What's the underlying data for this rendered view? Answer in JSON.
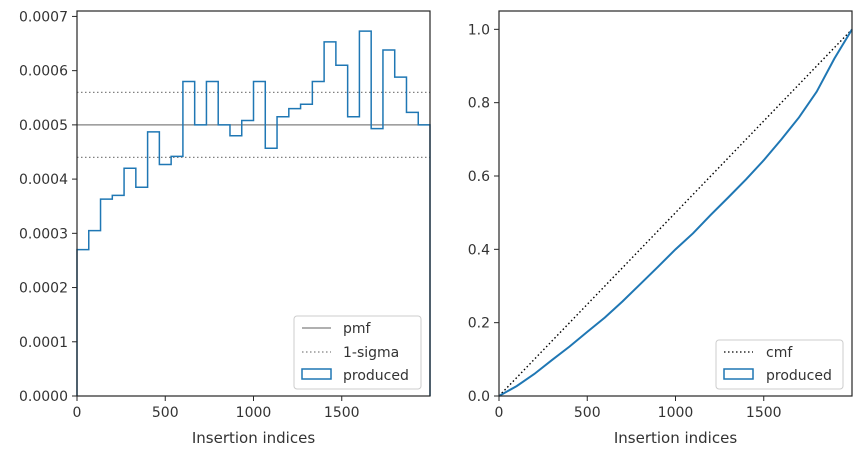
{
  "chart_data": [
    {
      "type": "step",
      "xlabel": "Insertion indices",
      "ylabel": "",
      "xlim": [
        0,
        2000
      ],
      "ylim": [
        0,
        0.00071
      ],
      "xticks": [
        "0",
        "500",
        "1000",
        "1500"
      ],
      "yticks": [
        "0.0000",
        "0.0001",
        "0.0002",
        "0.0003",
        "0.0004",
        "0.0005",
        "0.0006",
        "0.0007"
      ],
      "xtick_values": [
        0,
        500,
        1000,
        1500
      ],
      "ytick_values": [
        0,
        0.0001,
        0.0002,
        0.0003,
        0.0004,
        0.0005,
        0.0006,
        0.0007
      ],
      "bin_width": 66.67,
      "series": [
        {
          "name": "produced",
          "color": "#1f77b4",
          "values": [
            0.00027,
            0.000305,
            0.000363,
            0.00037,
            0.00042,
            0.000385,
            0.000487,
            0.000427,
            0.000442,
            0.00058,
            0.0005,
            0.00058,
            0.0005,
            0.00048,
            0.000508,
            0.00058,
            0.000457,
            0.000515,
            0.00053,
            0.000538,
            0.00058,
            0.000653,
            0.00061,
            0.000515,
            0.000673,
            0.000493,
            0.000638,
            0.000588,
            0.000523,
            0.0005
          ]
        }
      ],
      "reference_lines": [
        {
          "name": "pmf",
          "y": 0.0005,
          "style": "solid",
          "color": "#808080"
        },
        {
          "name": "1-sigma",
          "y": 0.00056,
          "style": "dotted",
          "color": "#808080"
        },
        {
          "name": "1-sigma",
          "y": 0.00044,
          "style": "dotted",
          "color": "#808080"
        }
      ],
      "legend": {
        "position": "bottom-right",
        "entries": [
          "pmf",
          "1-sigma",
          "produced"
        ]
      }
    },
    {
      "type": "line",
      "xlabel": "Insertion indices",
      "ylabel": "",
      "xlim": [
        0,
        2000
      ],
      "ylim": [
        0,
        1.05
      ],
      "xticks": [
        "0",
        "500",
        "1000",
        "1500"
      ],
      "yticks": [
        "0.0",
        "0.2",
        "0.4",
        "0.6",
        "0.8",
        "1.0"
      ],
      "xtick_values": [
        0,
        500,
        1000,
        1500
      ],
      "ytick_values": [
        0,
        0.2,
        0.4,
        0.6,
        0.8,
        1.0
      ],
      "series": [
        {
          "name": "cmf",
          "style": "dotted",
          "color": "#000000",
          "x": [
            0,
            2000
          ],
          "y": [
            0,
            1.0
          ]
        },
        {
          "name": "produced",
          "color": "#1f77b4",
          "x": [
            0,
            100,
            200,
            300,
            400,
            500,
            600,
            700,
            800,
            900,
            1000,
            1100,
            1200,
            1300,
            1400,
            1500,
            1600,
            1700,
            1800,
            1900,
            2000
          ],
          "y": [
            0,
            0.027,
            0.06,
            0.098,
            0.135,
            0.175,
            0.214,
            0.258,
            0.305,
            0.352,
            0.4,
            0.444,
            0.494,
            0.542,
            0.591,
            0.643,
            0.7,
            0.76,
            0.83,
            0.92,
            1.0
          ]
        }
      ],
      "legend": {
        "position": "bottom-right",
        "entries": [
          "cmf",
          "produced"
        ]
      }
    }
  ]
}
